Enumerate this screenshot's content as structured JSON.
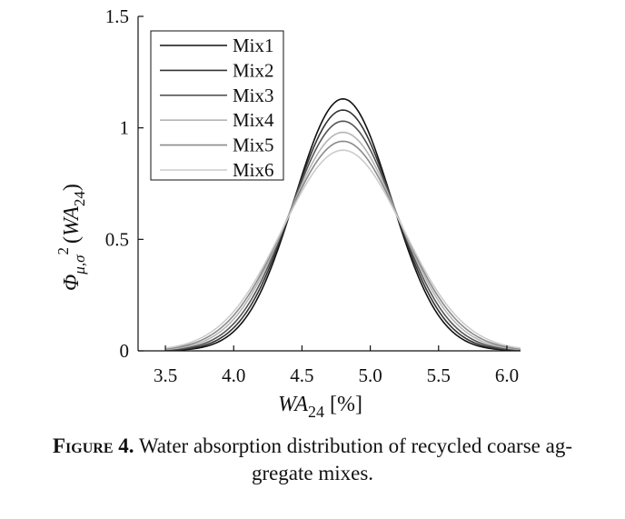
{
  "chart_data": {
    "type": "line",
    "xlabel_main": "WA",
    "xlabel_sub": "24",
    "xlabel_unit": "[%]",
    "ylabel_main": "Φ",
    "ylabel_sub": "μ,σ",
    "ylabel_sup": "2",
    "ylabel_arg_open": "(",
    "ylabel_arg": "WA",
    "ylabel_arg_sub": "24",
    "ylabel_arg_close": ")",
    "xlim": [
      3.3,
      6.1
    ],
    "ylim": [
      0,
      1.5
    ],
    "x_ticks": [
      3.5,
      4.0,
      4.5,
      5.0,
      5.5,
      6.0
    ],
    "x_tick_labels": [
      "3.5",
      "4.0",
      "4.5",
      "5.0",
      "5.5",
      "6.0"
    ],
    "y_ticks": [
      0,
      0.5,
      1,
      1.5
    ],
    "y_tick_labels": [
      "0",
      "0.5",
      "1",
      "1.5"
    ],
    "x_range": [
      3.5,
      6.1
    ],
    "grid": false,
    "legend_position": "top-left",
    "series": [
      {
        "name": "Mix1",
        "mean": 4.8,
        "peak": 1.13,
        "color": "#111111"
      },
      {
        "name": "Mix2",
        "mean": 4.8,
        "peak": 1.08,
        "color": "#333333"
      },
      {
        "name": "Mix3",
        "mean": 4.8,
        "peak": 1.03,
        "color": "#555555"
      },
      {
        "name": "Mix4",
        "mean": 4.8,
        "peak": 0.98,
        "color": "#b5b5b5"
      },
      {
        "name": "Mix5",
        "mean": 4.8,
        "peak": 0.94,
        "color": "#8a8a8a"
      },
      {
        "name": "Mix6",
        "mean": 4.8,
        "peak": 0.9,
        "color": "#cccccc"
      }
    ]
  },
  "caption": {
    "label": "Figure 4.",
    "line1": " Water absorption distribution of recycled coarse ag-",
    "line2": "gregate mixes."
  }
}
